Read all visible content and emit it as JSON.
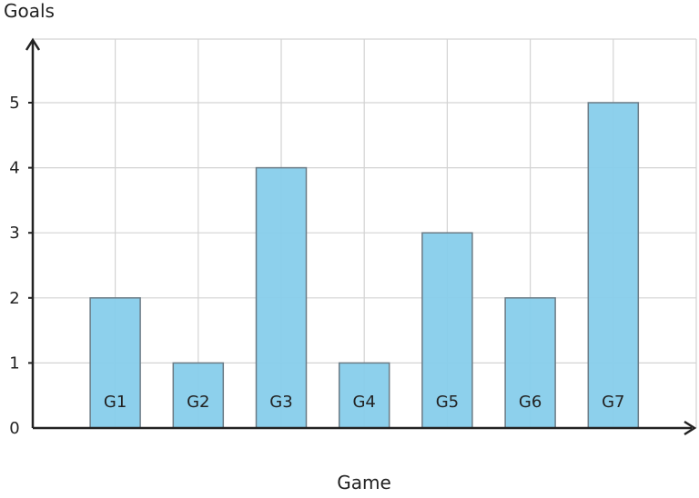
{
  "chart_data": {
    "type": "bar",
    "categories": [
      "G1",
      "G2",
      "G3",
      "G4",
      "G5",
      "G6",
      "G7"
    ],
    "values": [
      2,
      1,
      4,
      1,
      3,
      2,
      5
    ],
    "xlabel": "Game",
    "ylabel": "Goals",
    "ylim": [
      0,
      6
    ],
    "yticks": [
      0,
      1,
      2,
      3,
      4,
      5
    ],
    "grid": true,
    "bar_color": "#87CEEB",
    "bar_edge_color": "#6b7b85",
    "grid_color": "#d3d3d3",
    "axis_color": "#222222"
  }
}
